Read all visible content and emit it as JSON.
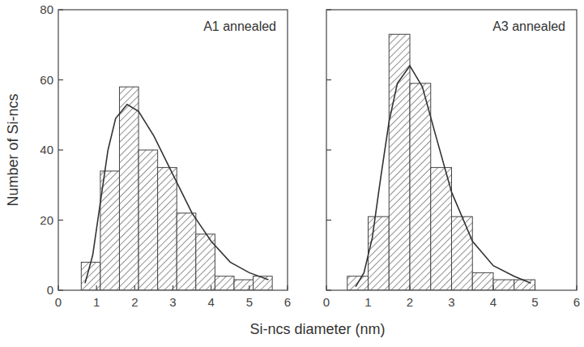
{
  "chart_data": [
    {
      "type": "histogram",
      "title": "A1 annealed",
      "x_label": "Si-ncs diameter (nm)",
      "y_label": "Number of Si-ncs",
      "bins": [
        0.6,
        1.1,
        1.6,
        2.1,
        2.6,
        3.1,
        3.6,
        4.1,
        4.6,
        5.1,
        5.6
      ],
      "values": [
        8,
        34,
        58,
        40,
        35,
        22,
        16,
        4,
        3,
        4
      ],
      "series": [
        {
          "type": "line",
          "color": "#333333",
          "x": [
            0.7,
            0.9,
            1.1,
            1.3,
            1.5,
            1.8,
            2.1,
            2.5,
            3.0,
            3.5,
            4.0,
            4.5,
            5.0,
            5.5
          ],
          "values": [
            2,
            10,
            25,
            40,
            49,
            53,
            51,
            44,
            33,
            22,
            14,
            8,
            5,
            3
          ]
        }
      ],
      "xlim": [
        0,
        6
      ],
      "xticks": [
        0,
        1,
        2,
        3,
        4,
        5,
        6
      ],
      "ylim": [
        0,
        80
      ],
      "yticks": [
        0,
        20,
        40,
        60,
        80
      ],
      "color": "#555555"
    },
    {
      "type": "histogram",
      "title": "A3 annealed",
      "bins": [
        0.5,
        1.0,
        1.5,
        2.0,
        2.5,
        3.0,
        3.5,
        4.0,
        4.5,
        5.0
      ],
      "values": [
        4,
        21,
        73,
        59,
        35,
        21,
        5,
        3,
        3
      ],
      "series": [
        {
          "type": "line",
          "color": "#333333",
          "x": [
            0.7,
            0.9,
            1.1,
            1.3,
            1.5,
            1.7,
            2.0,
            2.3,
            2.6,
            3.0,
            3.5,
            4.0,
            4.5,
            4.9
          ],
          "values": [
            1,
            5,
            15,
            32,
            48,
            59,
            64,
            58,
            45,
            28,
            14,
            7,
            4,
            2
          ]
        }
      ],
      "xlim": [
        0,
        6
      ],
      "xticks": [
        0,
        1,
        2,
        3,
        4,
        5,
        6
      ],
      "ylim": [
        0,
        80
      ],
      "yticks": [
        0,
        20,
        40,
        60,
        80
      ],
      "tick_labels": "x",
      "color": "#555555"
    }
  ]
}
